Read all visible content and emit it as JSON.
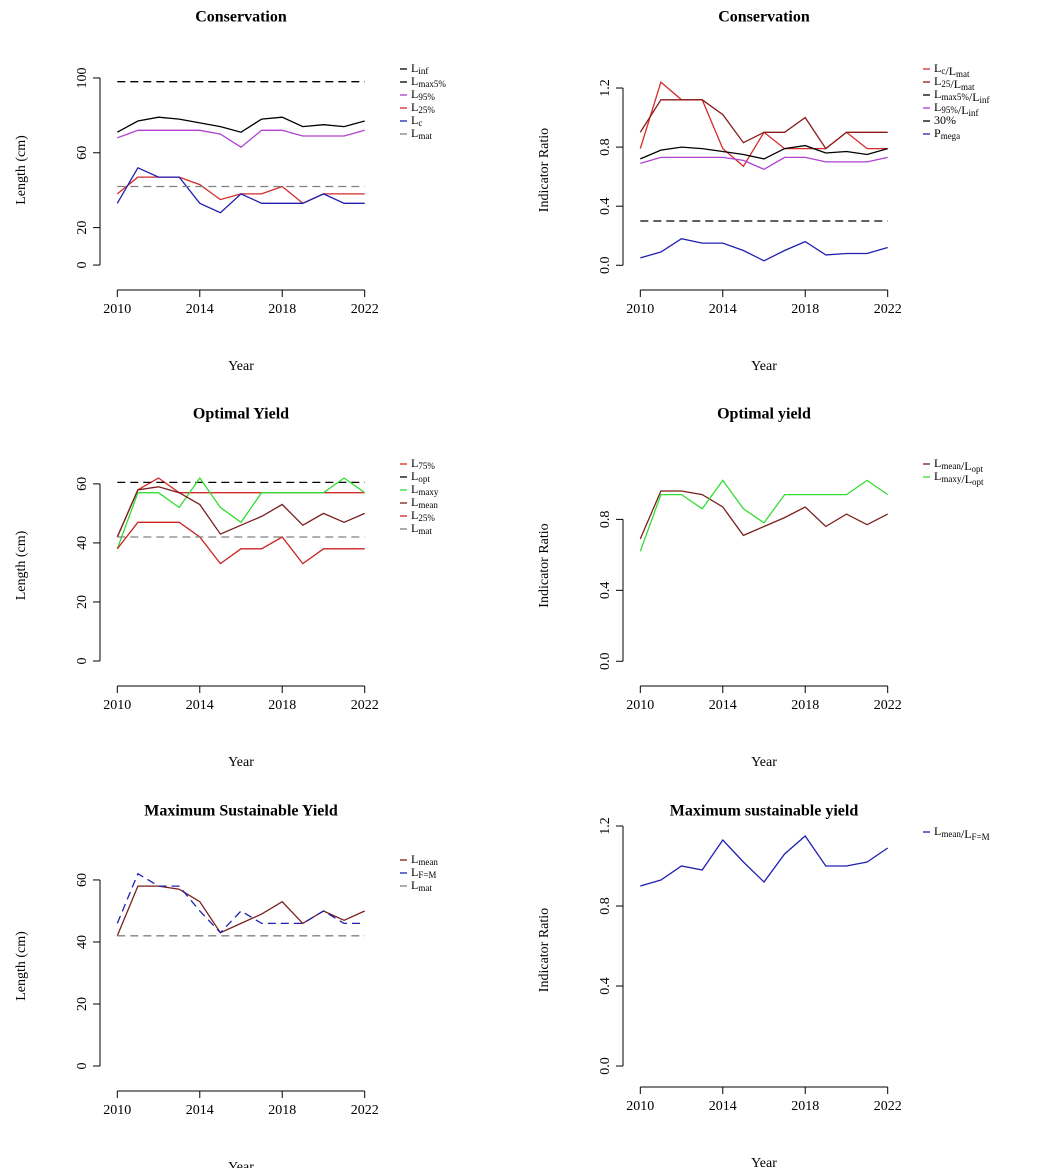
{
  "chart_data": [
    {
      "type": "line",
      "title": "Conservation",
      "xlabel": "Year",
      "ylabel": "Length (cm)",
      "x": [
        2010,
        2011,
        2012,
        2013,
        2014,
        2015,
        2016,
        2017,
        2018,
        2019,
        2020,
        2021,
        2022
      ],
      "xlim": [
        2009.5,
        2022.5
      ],
      "xticks": [
        2010,
        2014,
        2018,
        2022
      ],
      "ylim": [
        -9.6,
        111.2
      ],
      "yticks": [
        0,
        20,
        60,
        100
      ],
      "series": [
        {
          "name": "Linf",
          "color": "#000000",
          "linestyle": "dashed",
          "values": [
            98,
            98,
            98,
            98,
            98,
            98,
            98,
            98,
            98,
            98,
            98,
            98,
            98
          ]
        },
        {
          "name": "Lmax5%",
          "color": "#000000",
          "linestyle": "solid",
          "values": [
            71,
            77,
            79,
            78,
            76,
            74,
            71,
            78,
            79,
            74,
            75,
            74,
            77
          ]
        },
        {
          "name": "L95%",
          "color": "#b040d0",
          "linestyle": "solid",
          "values": [
            68,
            72,
            72,
            72,
            72,
            70,
            63,
            72,
            72,
            69,
            69,
            69,
            72
          ]
        },
        {
          "name": "L25%",
          "color": "#d42a2a",
          "linestyle": "solid",
          "values": [
            38,
            47,
            47,
            47,
            43,
            35,
            38,
            38,
            42,
            33,
            38,
            38,
            38
          ]
        },
        {
          "name": "Lc",
          "color": "#2020b0",
          "linestyle": "solid",
          "values": [
            33,
            52,
            47,
            47,
            33,
            28,
            38,
            33,
            33,
            33,
            38,
            33,
            33
          ]
        },
        {
          "name": "Lmat",
          "color": "#808080",
          "linestyle": "dashed",
          "values": [
            42,
            42,
            42,
            42,
            42,
            42,
            42,
            42,
            42,
            42,
            42,
            42,
            42
          ]
        }
      ]
    },
    {
      "type": "line",
      "title": "Conservation",
      "xlabel": "Year",
      "ylabel": "Indicator Ratio",
      "x": [
        2010,
        2011,
        2012,
        2013,
        2014,
        2015,
        2016,
        2017,
        2018,
        2019,
        2020,
        2021,
        2022
      ],
      "xlim": [
        2009.5,
        2022.5
      ],
      "xticks": [
        2010,
        2014,
        2018,
        2022
      ],
      "ylim": [
        -0.12,
        1.41
      ],
      "yticks": [
        {
          "value": 0,
          "label": "0.0"
        },
        {
          "value": 0.4,
          "label": "0.4"
        },
        {
          "value": 0.8,
          "label": "0.8"
        },
        {
          "value": 1.2,
          "label": "1.2"
        }
      ],
      "series": [
        {
          "name": "Lc/Lmat",
          "color": "#d42a2a",
          "linestyle": "solid",
          "values": [
            0.79,
            1.24,
            1.12,
            1.12,
            0.79,
            0.67,
            0.9,
            0.79,
            0.79,
            0.79,
            0.9,
            0.79,
            0.79
          ]
        },
        {
          "name": "L25/Lmat",
          "color": "#8b1a1a",
          "linestyle": "solid",
          "values": [
            0.9,
            1.12,
            1.12,
            1.12,
            1.02,
            0.83,
            0.9,
            0.9,
            1.0,
            0.79,
            0.9,
            0.9,
            0.9
          ]
        },
        {
          "name": "Lmax5%/Linf",
          "color": "#000000",
          "linestyle": "solid",
          "values": [
            0.72,
            0.78,
            0.8,
            0.79,
            0.77,
            0.75,
            0.72,
            0.79,
            0.81,
            0.76,
            0.77,
            0.75,
            0.79
          ]
        },
        {
          "name": "L95%/Linf",
          "color": "#b040d0",
          "linestyle": "solid",
          "values": [
            0.69,
            0.73,
            0.73,
            0.73,
            0.73,
            0.71,
            0.65,
            0.73,
            0.73,
            0.7,
            0.7,
            0.7,
            0.73
          ]
        },
        {
          "name": "30%",
          "color": "#000000",
          "linestyle": "dashed",
          "values": [
            0.3,
            0.3,
            0.3,
            0.3,
            0.3,
            0.3,
            0.3,
            0.3,
            0.3,
            0.3,
            0.3,
            0.3,
            0.3
          ]
        },
        {
          "name": "Pmega",
          "color": "#2020b0",
          "linestyle": "solid",
          "values": [
            0.05,
            0.09,
            0.18,
            0.15,
            0.15,
            0.1,
            0.03,
            0.1,
            0.16,
            0.07,
            0.08,
            0.08,
            0.12
          ]
        }
      ]
    },
    {
      "type": "line",
      "title": "Optimal Yield",
      "xlabel": "Year",
      "ylabel": "Length (cm)",
      "x": [
        2010,
        2011,
        2012,
        2013,
        2014,
        2015,
        2016,
        2017,
        2018,
        2019,
        2020,
        2021,
        2022
      ],
      "xlim": [
        2009.5,
        2022.5
      ],
      "xticks": [
        2010,
        2014,
        2018,
        2022
      ],
      "ylim": [
        -6.1,
        70.8
      ],
      "yticks": [
        0,
        20,
        40,
        60
      ],
      "series": [
        {
          "name": "L75%",
          "color": "#d42a2a",
          "linestyle": "solid",
          "values": [
            42,
            58,
            62,
            57,
            57,
            57,
            57,
            57,
            57,
            57,
            57,
            57,
            57
          ]
        },
        {
          "name": "Lopt",
          "color": "#000000",
          "linestyle": "dashed",
          "values": [
            60.5,
            60.5,
            60.5,
            60.5,
            60.5,
            60.5,
            60.5,
            60.5,
            60.5,
            60.5,
            60.5,
            60.5,
            60.5
          ]
        },
        {
          "name": "Lmaxy",
          "color": "#33dd33",
          "linestyle": "solid",
          "values": [
            38,
            57,
            57,
            52,
            62,
            52,
            47,
            57,
            57,
            57,
            57,
            62,
            57
          ]
        },
        {
          "name": "Lmean",
          "color": "#7a1f1f",
          "linestyle": "solid",
          "values": [
            42,
            58,
            59,
            57,
            53,
            43,
            46,
            49,
            53,
            46,
            50,
            47,
            50
          ]
        },
        {
          "name": "L25%",
          "color": "#cc2222",
          "linestyle": "solid",
          "values": [
            38,
            47,
            47,
            47,
            42,
            33,
            38,
            38,
            42,
            33,
            38,
            38,
            38
          ]
        },
        {
          "name": "Lmat",
          "color": "#808080",
          "linestyle": "dashed",
          "values": [
            42,
            42,
            42,
            42,
            42,
            42,
            42,
            42,
            42,
            42,
            42,
            42,
            42
          ]
        }
      ]
    },
    {
      "type": "line",
      "title": "Optimal yield",
      "xlabel": "Year",
      "ylabel": "Indicator Ratio",
      "x": [
        2010,
        2011,
        2012,
        2013,
        2014,
        2015,
        2016,
        2017,
        2018,
        2019,
        2020,
        2021,
        2022
      ],
      "xlim": [
        2009.5,
        2022.5
      ],
      "xticks": [
        2010,
        2014,
        2018,
        2022
      ],
      "ylim": [
        -0.1,
        1.18
      ],
      "yticks": [
        {
          "value": 0,
          "label": "0.0"
        },
        {
          "value": 0.4,
          "label": "0.4"
        },
        {
          "value": 0.8,
          "label": "0.8"
        }
      ],
      "series": [
        {
          "name": "Lmean/Lopt",
          "color": "#7a1f1f",
          "linestyle": "solid",
          "values": [
            0.69,
            0.96,
            0.96,
            0.94,
            0.87,
            0.71,
            0.76,
            0.81,
            0.87,
            0.76,
            0.83,
            0.77,
            0.83
          ]
        },
        {
          "name": "Lmaxy/Lopt",
          "color": "#33dd33",
          "linestyle": "solid",
          "values": [
            0.62,
            0.94,
            0.94,
            0.86,
            1.02,
            0.86,
            0.78,
            0.94,
            0.94,
            0.94,
            0.94,
            1.02,
            0.94
          ]
        }
      ]
    },
    {
      "type": "line",
      "title": "Maximum Sustainable Yield",
      "xlabel": "Year",
      "ylabel": "Length (cm)",
      "x": [
        2010,
        2011,
        2012,
        2013,
        2014,
        2015,
        2016,
        2017,
        2018,
        2019,
        2020,
        2021,
        2022
      ],
      "xlim": [
        2009.5,
        2022.5
      ],
      "xticks": [
        2010,
        2014,
        2018,
        2022
      ],
      "ylim": [
        -5.8,
        70.3
      ],
      "yticks": [
        0,
        20,
        40,
        60
      ],
      "series": [
        {
          "name": "Lmean",
          "color": "#7a1f1f",
          "linestyle": "solid",
          "values": [
            42,
            58,
            58,
            57,
            53,
            43,
            46,
            49,
            53,
            46,
            50,
            47,
            50
          ]
        },
        {
          "name": "LF=M",
          "color": "#2020b0",
          "linestyle": "dashed",
          "values": [
            46,
            62,
            58,
            58,
            50,
            43,
            50,
            46,
            46,
            46,
            50,
            46,
            46
          ]
        },
        {
          "name": "Lmat",
          "color": "#808080",
          "linestyle": "dashed",
          "values": [
            42,
            42,
            42,
            42,
            42,
            42,
            42,
            42,
            42,
            42,
            42,
            42,
            42
          ]
        }
      ]
    },
    {
      "type": "line",
      "title": "Maximum sustainable yield",
      "xlabel": "Year",
      "ylabel": "Indicator Ratio",
      "x": [
        2010,
        2011,
        2012,
        2013,
        2014,
        2015,
        2016,
        2017,
        2018,
        2019,
        2020,
        2021,
        2022
      ],
      "xlim": [
        2009.5,
        2022.5
      ],
      "xticks": [
        2010,
        2014,
        2018,
        2022
      ],
      "ylim": [
        -0.07,
        1.23
      ],
      "yticks": [
        {
          "value": 0,
          "label": "0.0"
        },
        {
          "value": 0.4,
          "label": "0.4"
        },
        {
          "value": 0.8,
          "label": "0.8"
        },
        {
          "value": 1.2,
          "label": "1.2"
        }
      ],
      "series": [
        {
          "name": "Lmean/LF=M",
          "color": "#2020b0",
          "linestyle": "solid",
          "values": [
            0.9,
            0.93,
            1.0,
            0.98,
            1.13,
            1.02,
            0.92,
            1.06,
            1.15,
            1.0,
            1.0,
            1.02,
            1.09
          ]
        }
      ]
    }
  ]
}
